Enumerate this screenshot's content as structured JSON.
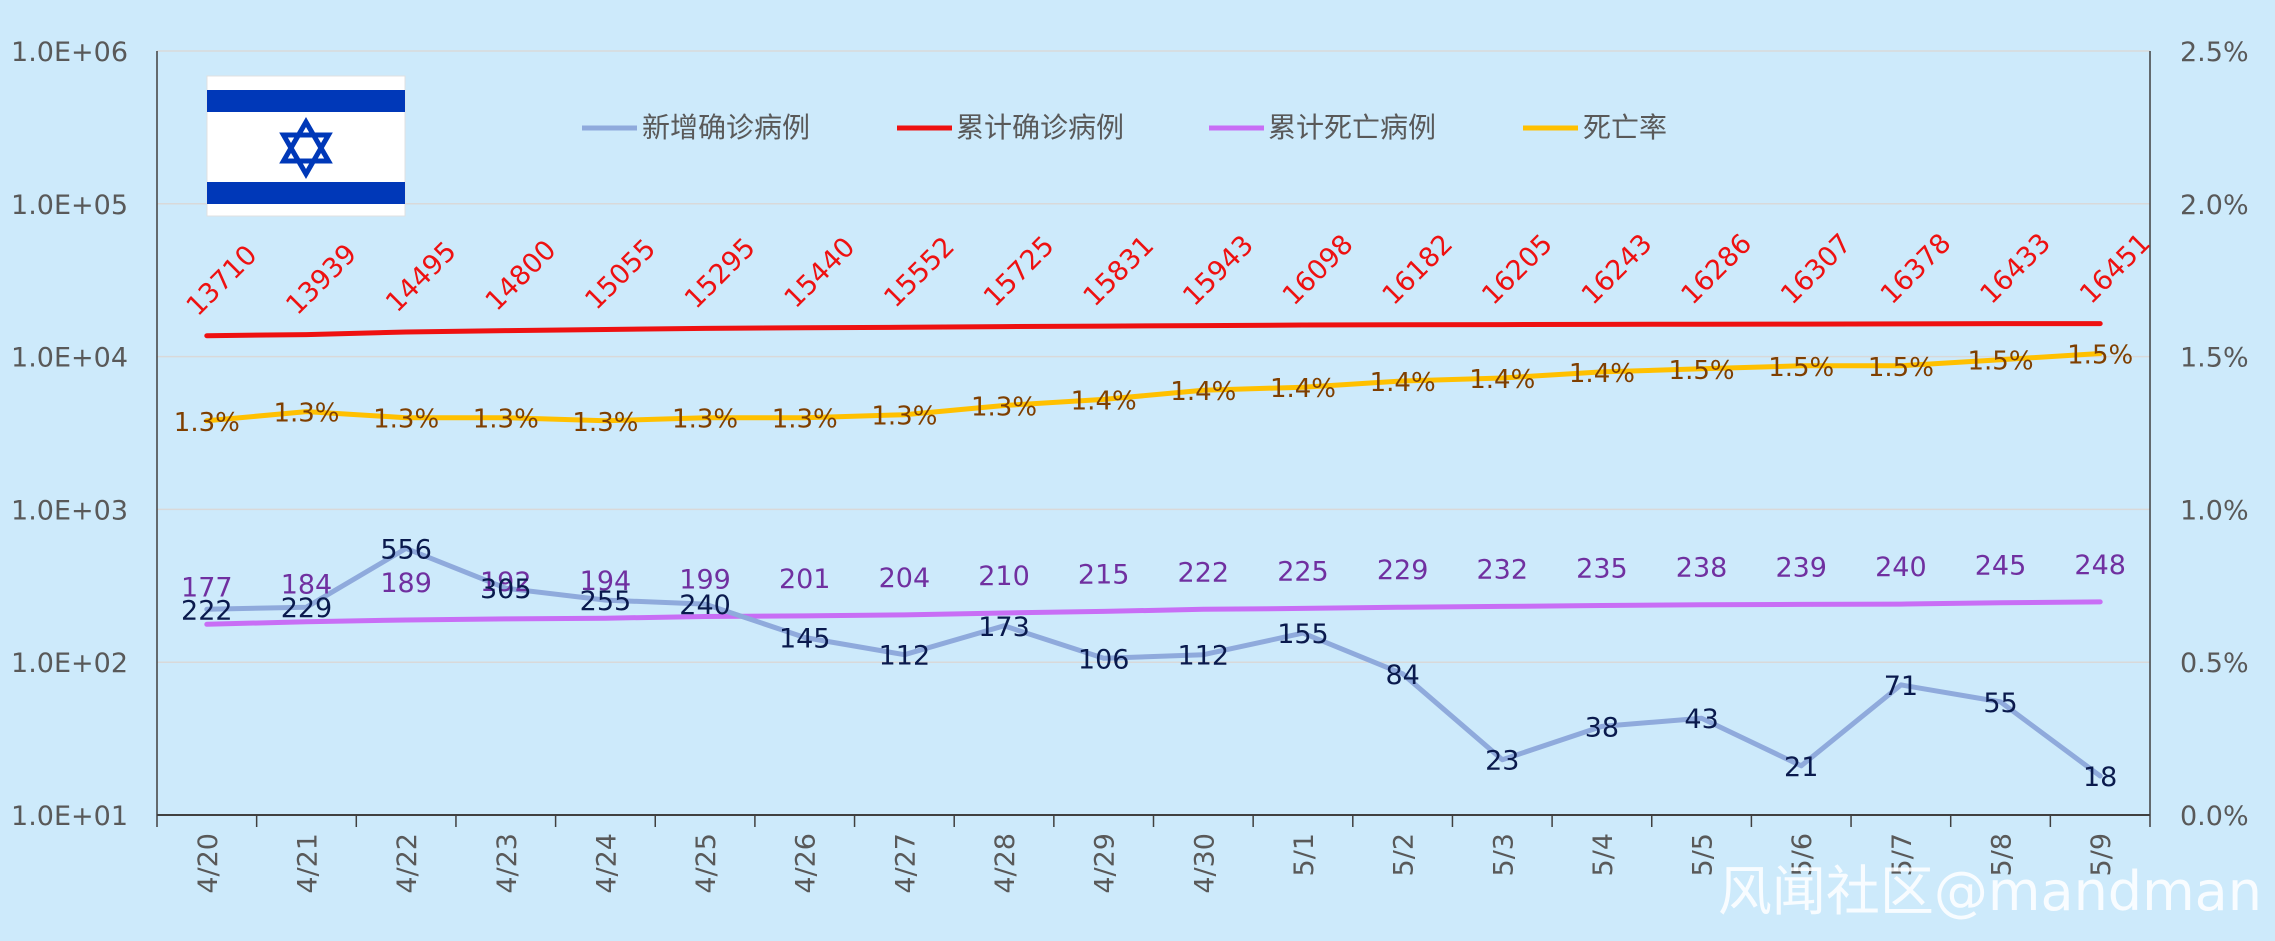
{
  "chart_data": {
    "type": "line",
    "categories": [
      "4/20",
      "4/21",
      "4/22",
      "4/23",
      "4/24",
      "4/25",
      "4/26",
      "4/27",
      "4/28",
      "4/29",
      "4/30",
      "5/1",
      "5/2",
      "5/3",
      "5/4",
      "5/5",
      "5/6",
      "5/7",
      "5/8",
      "5/9"
    ],
    "y_left": {
      "scale": "log",
      "range": [
        10,
        1000000
      ],
      "tick_values": [
        10,
        100,
        1000,
        10000,
        100000,
        1000000
      ],
      "tick_labels": [
        "1.0E+01",
        "1.0E+02",
        "1.0E+03",
        "1.0E+04",
        "1.0E+05",
        "1.0E+06"
      ]
    },
    "y_right": {
      "scale": "linear",
      "range": [
        0,
        0.025
      ],
      "tick_values": [
        0,
        0.005,
        0.01,
        0.015,
        0.02,
        0.025
      ],
      "tick_labels": [
        "0.0%",
        "0.5%",
        "1.0%",
        "1.5%",
        "2.0%",
        "2.5%"
      ]
    },
    "grid": true,
    "legend_position": "top",
    "series": [
      {
        "name": "新增确诊病例",
        "axis": "left",
        "color": "#8faadc",
        "values": [
          222,
          229,
          556,
          305,
          255,
          240,
          145,
          112,
          173,
          106,
          112,
          155,
          84,
          23,
          38,
          43,
          21,
          71,
          55,
          18
        ],
        "labels": [
          "222",
          "229",
          "556",
          "305",
          "255",
          "240",
          "145",
          "112",
          "173",
          "106",
          "112",
          "155",
          "84",
          "23",
          "38",
          "43",
          "21",
          "71",
          "55",
          "18"
        ],
        "label_color": "#0a1a4d"
      },
      {
        "name": "累计确诊病例",
        "axis": "left",
        "color": "#ee1111",
        "values": [
          13710,
          13939,
          14495,
          14800,
          15055,
          15295,
          15440,
          15552,
          15725,
          15831,
          15943,
          16098,
          16182,
          16205,
          16243,
          16286,
          16307,
          16378,
          16433,
          16451
        ],
        "labels": [
          "13710",
          "13939",
          "14495",
          "14800",
          "15055",
          "15295",
          "15440",
          "15552",
          "15725",
          "15831",
          "15943",
          "16098",
          "16182",
          "16205",
          "16243",
          "16286",
          "16307",
          "16378",
          "16433",
          "16451"
        ],
        "label_color": "#ee1111"
      },
      {
        "name": "累计死亡病例",
        "axis": "left",
        "color": "#c86ef5",
        "values": [
          177,
          184,
          189,
          192,
          194,
          199,
          201,
          204,
          210,
          215,
          222,
          225,
          229,
          232,
          235,
          238,
          239,
          240,
          245,
          248
        ],
        "labels": [
          "177",
          "184",
          "189",
          "192",
          "194",
          "199",
          "201",
          "204",
          "210",
          "215",
          "222",
          "225",
          "229",
          "232",
          "235",
          "238",
          "239",
          "240",
          "245",
          "248"
        ],
        "label_color": "#7030a0"
      },
      {
        "name": "死亡率",
        "axis": "right",
        "color": "#ffc000",
        "values": [
          0.0129,
          0.0132,
          0.013,
          0.013,
          0.0129,
          0.013,
          0.013,
          0.0131,
          0.0134,
          0.0136,
          0.0139,
          0.014,
          0.0142,
          0.0143,
          0.0145,
          0.0146,
          0.0147,
          0.0147,
          0.0149,
          0.0151
        ],
        "labels": [
          "1.3%",
          "1.3%",
          "1.3%",
          "1.3%",
          "1.3%",
          "1.3%",
          "1.3%",
          "1.3%",
          "1.3%",
          "1.4%",
          "1.4%",
          "1.4%",
          "1.4%",
          "1.4%",
          "1.4%",
          "1.5%",
          "1.5%",
          "1.5%",
          "1.5%",
          "1.5%"
        ],
        "label_color": "#7f3f00"
      }
    ],
    "annotations": {
      "watermark": "风闻社区@mandman"
    }
  },
  "colors": {
    "background": "#cdeafb",
    "axis": "#404040",
    "tick_text": "#595959",
    "grid": "#d9d9d9",
    "flag_blue": "#0038b8",
    "flag_white": "#ffffff"
  }
}
